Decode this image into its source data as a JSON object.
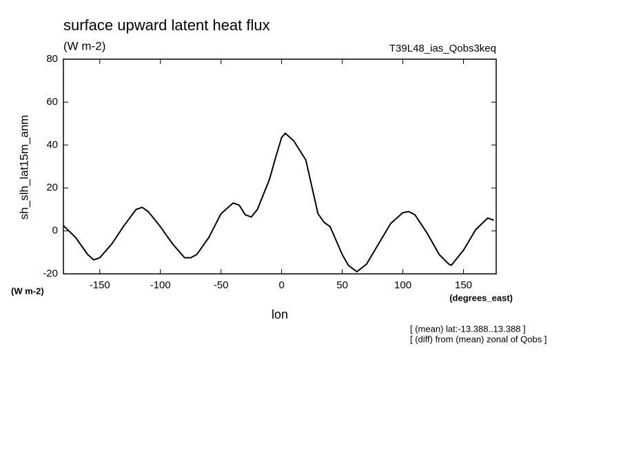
{
  "chart_data": {
    "type": "line",
    "title": "surface upward latent heat flux",
    "subtitle": "(W m-2)",
    "experiment": "T39L48_ias_Qobs3keq",
    "y_label": "sh_slh_lat15m_anm",
    "y_unit": "(W m-2)",
    "x_label": "lon",
    "x_unit": "(degrees_east)",
    "notes": [
      "[ (mean) lat:-13.388..13.388 ]",
      "[ (diff) from (mean) zonal of Qobs ]"
    ],
    "xlim": [
      -180,
      177
    ],
    "ylim": [
      -20,
      80
    ],
    "xticks": [
      -150,
      -100,
      -50,
      0,
      50,
      100,
      150
    ],
    "yticks": [
      -20,
      0,
      20,
      40,
      60,
      80
    ],
    "color": "#000000",
    "x": [
      -180,
      -170,
      -160,
      -155,
      -150,
      -140,
      -130,
      -120,
      -115,
      -110,
      -100,
      -90,
      -80,
      -75,
      -70,
      -60,
      -50,
      -40,
      -35,
      -30,
      -25,
      -20,
      -10,
      -5,
      0,
      3,
      10,
      20,
      30,
      35,
      40,
      50,
      55,
      62,
      70,
      80,
      90,
      100,
      105,
      110,
      120,
      130,
      138,
      140,
      150,
      160,
      170,
      175
    ],
    "values": [
      2.5,
      -3,
      -11,
      -13.5,
      -12.5,
      -6,
      2.5,
      10,
      11,
      9,
      2,
      -6,
      -12.5,
      -12.5,
      -11,
      -3,
      8,
      13,
      12,
      7.5,
      6.5,
      10,
      24,
      34,
      43.5,
      45.5,
      42,
      33,
      8,
      4,
      2,
      -11,
      -16,
      -19,
      -15.5,
      -6,
      3.5,
      8.5,
      9,
      7.5,
      -1,
      -11,
      -15.5,
      -16,
      -9,
      0.5,
      6,
      5
    ]
  }
}
